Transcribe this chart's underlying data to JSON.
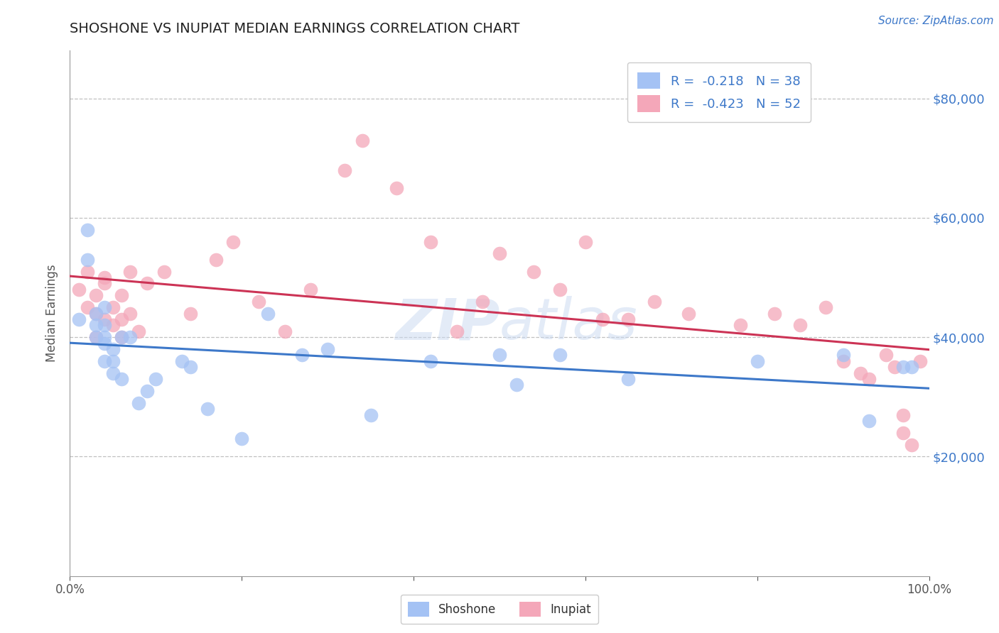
{
  "title": "SHOSHONE VS INUPIAT MEDIAN EARNINGS CORRELATION CHART",
  "source": "Source: ZipAtlas.com",
  "ylabel": "Median Earnings",
  "xlim": [
    0,
    1
  ],
  "ylim": [
    0,
    88000
  ],
  "yticks": [
    20000,
    40000,
    60000,
    80000
  ],
  "ytick_labels": [
    "$20,000",
    "$40,000",
    "$60,000",
    "$80,000"
  ],
  "xtick_labels": [
    "0.0%",
    "100.0%"
  ],
  "shoshone_color": "#a4c2f4",
  "inupiat_color": "#f4a7b9",
  "shoshone_line_color": "#3d78c9",
  "inupiat_line_color": "#cc3355",
  "legend_text_color": "#3d78c9",
  "watermark_color": "#c8d8f0",
  "shoshone_R": -0.218,
  "shoshone_N": 38,
  "inupiat_R": -0.423,
  "inupiat_N": 52,
  "shoshone_x": [
    0.01,
    0.02,
    0.02,
    0.03,
    0.03,
    0.03,
    0.04,
    0.04,
    0.04,
    0.04,
    0.04,
    0.05,
    0.05,
    0.05,
    0.06,
    0.06,
    0.07,
    0.08,
    0.09,
    0.1,
    0.13,
    0.14,
    0.16,
    0.2,
    0.23,
    0.27,
    0.3,
    0.35,
    0.42,
    0.5,
    0.52,
    0.57,
    0.65,
    0.8,
    0.9,
    0.93,
    0.97,
    0.98
  ],
  "shoshone_y": [
    43000,
    58000,
    53000,
    44000,
    42000,
    40000,
    42000,
    39000,
    36000,
    45000,
    40000,
    38000,
    36000,
    34000,
    40000,
    33000,
    40000,
    29000,
    31000,
    33000,
    36000,
    35000,
    28000,
    23000,
    44000,
    37000,
    38000,
    27000,
    36000,
    37000,
    32000,
    37000,
    33000,
    36000,
    37000,
    26000,
    35000,
    35000
  ],
  "inupiat_x": [
    0.01,
    0.02,
    0.02,
    0.03,
    0.03,
    0.03,
    0.04,
    0.04,
    0.04,
    0.05,
    0.05,
    0.06,
    0.06,
    0.06,
    0.07,
    0.07,
    0.08,
    0.09,
    0.11,
    0.14,
    0.17,
    0.19,
    0.22,
    0.25,
    0.28,
    0.32,
    0.34,
    0.38,
    0.42,
    0.45,
    0.48,
    0.5,
    0.54,
    0.57,
    0.6,
    0.62,
    0.65,
    0.68,
    0.72,
    0.78,
    0.82,
    0.85,
    0.88,
    0.9,
    0.92,
    0.93,
    0.95,
    0.96,
    0.97,
    0.97,
    0.98,
    0.99
  ],
  "inupiat_y": [
    48000,
    51000,
    45000,
    47000,
    44000,
    40000,
    43000,
    50000,
    49000,
    45000,
    42000,
    47000,
    43000,
    40000,
    51000,
    44000,
    41000,
    49000,
    51000,
    44000,
    53000,
    56000,
    46000,
    41000,
    48000,
    68000,
    73000,
    65000,
    56000,
    41000,
    46000,
    54000,
    51000,
    48000,
    56000,
    43000,
    43000,
    46000,
    44000,
    42000,
    44000,
    42000,
    45000,
    36000,
    34000,
    33000,
    37000,
    35000,
    24000,
    27000,
    22000,
    36000
  ]
}
